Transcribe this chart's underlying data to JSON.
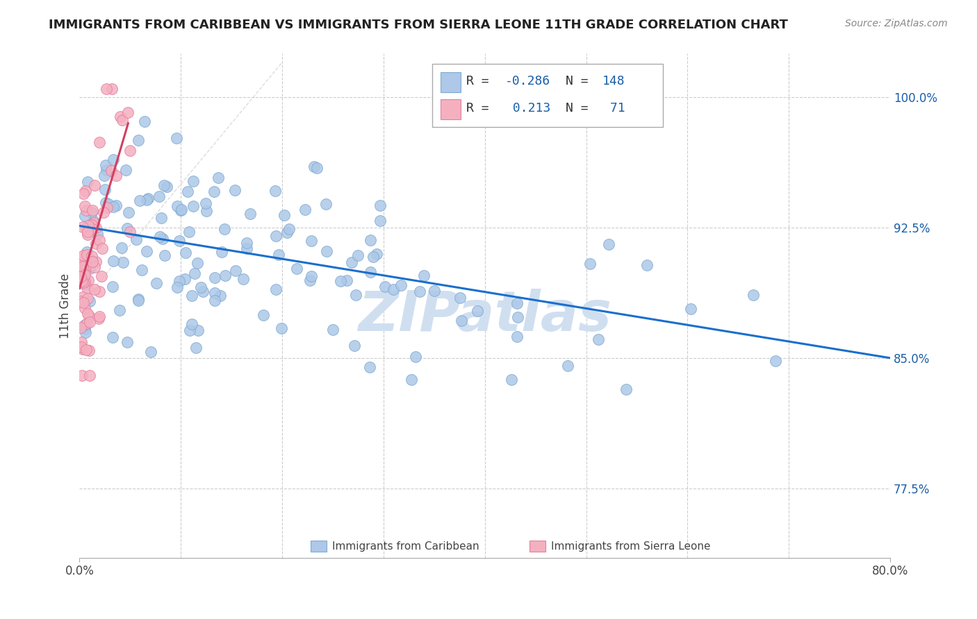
{
  "title": "IMMIGRANTS FROM CARIBBEAN VS IMMIGRANTS FROM SIERRA LEONE 11TH GRADE CORRELATION CHART",
  "source_text": "Source: ZipAtlas.com",
  "xlabel_caribbean": "Immigrants from Caribbean",
  "xlabel_sierraleone": "Immigrants from Sierra Leone",
  "ylabel": "11th Grade",
  "x_min": 0.0,
  "x_max": 0.8,
  "y_min": 0.735,
  "y_max": 1.025,
  "y_ticks": [
    0.775,
    0.85,
    0.925,
    1.0
  ],
  "y_tick_labels": [
    "77.5%",
    "85.0%",
    "92.5%",
    "100.0%"
  ],
  "x_ticks": [
    0.0,
    0.8
  ],
  "x_tick_labels": [
    "0.0%",
    "80.0%"
  ],
  "r_caribbean": -0.286,
  "n_caribbean": 148,
  "r_sierraleone": 0.213,
  "n_sierraleone": 71,
  "blue_color": "#adc8e8",
  "blue_edge": "#80aad0",
  "pink_color": "#f5b0c0",
  "pink_edge": "#e080a0",
  "trend_blue": "#1a6fcc",
  "trend_pink": "#d04060",
  "watermark_color": "#d0dff0",
  "legend_r_color": "#1a5fa8",
  "blue_trend_x0": 0.0,
  "blue_trend_y0": 0.926,
  "blue_trend_x1": 0.8,
  "blue_trend_y1": 0.85,
  "pink_trend_x0": 0.0,
  "pink_trend_y0": 0.89,
  "pink_trend_x1": 0.048,
  "pink_trend_y1": 0.985
}
